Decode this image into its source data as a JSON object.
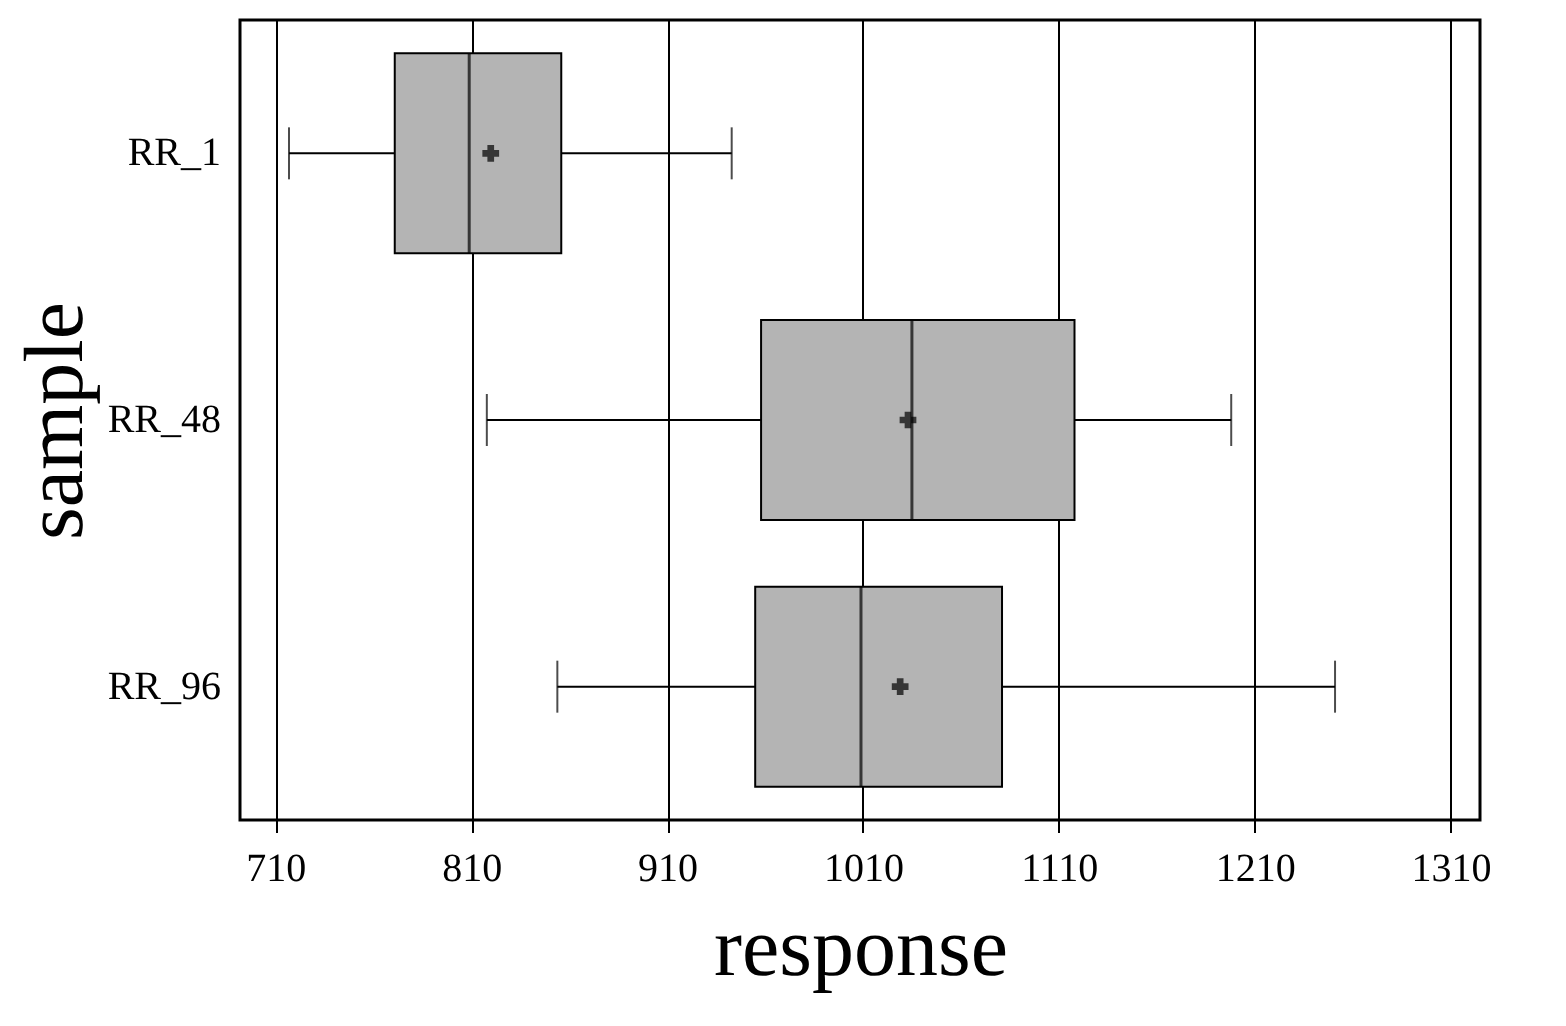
{
  "chart_data": {
    "type": "box",
    "orientation": "horizontal",
    "xlabel": "response",
    "ylabel": "sample",
    "categories": [
      "RR_1",
      "RR_48",
      "RR_96"
    ],
    "boxes": [
      {
        "low": 717,
        "q1": 771,
        "median": 809,
        "q3": 856,
        "high": 943,
        "mean": 820
      },
      {
        "low": 818,
        "q1": 958,
        "median": 1035,
        "q3": 1118,
        "high": 1198,
        "mean": 1033
      },
      {
        "low": 854,
        "q1": 955,
        "median": 1009,
        "q3": 1081,
        "high": 1251,
        "mean": 1029
      }
    ],
    "color": "#b4b4b4",
    "xlim": [
      692,
      1325
    ],
    "xticks": [
      710,
      810,
      910,
      1010,
      1110,
      1210,
      1310
    ],
    "grid": "x",
    "marker": "cross"
  }
}
